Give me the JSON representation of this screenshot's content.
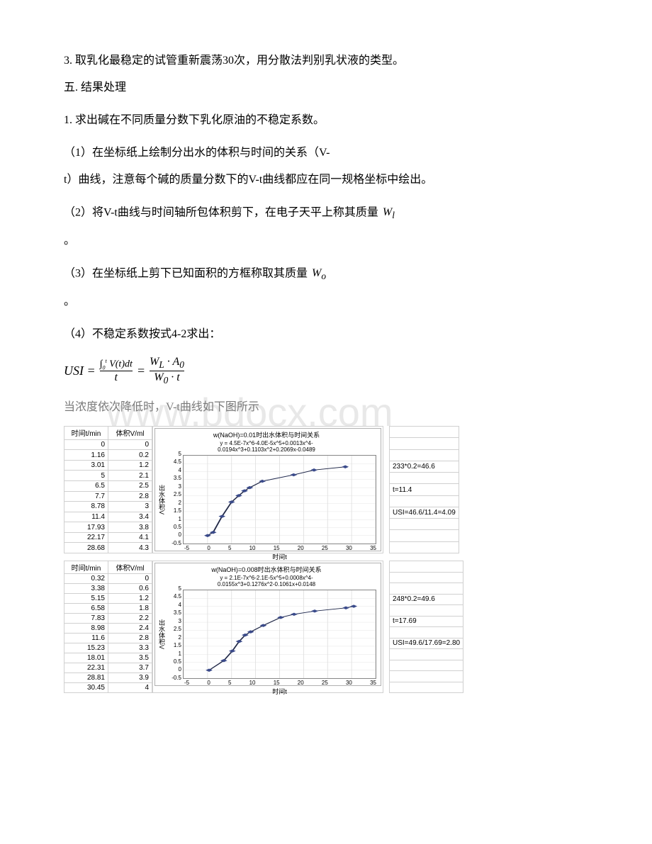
{
  "paragraphs": {
    "p3": "3. 取乳化最稳定的试管重新震荡30次，用分散法判别乳状液的类型。",
    "h5": "五. 结果处理",
    "p1": "1. 求出碱在不同质量分数下乳化原油的不稳定系数。",
    "s1a": "（1）在坐标纸上绘制分出水的体积与时间的关系（V-",
    "s1b": "t）曲线，注意每个碱的质量分数下的V-t曲线都应在同一规格坐标中绘出。",
    "s2": "（2）将V-t曲线与时间轴所包体积剪下，在电子天平上称其质量",
    "s2_period": "。",
    "s3": "（3）在坐标纸上剪下已知面积的方框称取其质量",
    "s3_period": "。",
    "s4": "（4）不稳定系数按式4-2求出：",
    "p_vt": "当浓度依次降低时，V-t曲线如下图所示"
  },
  "formula_labels": {
    "Wi": "W",
    "Wi_sub": "l",
    "Wo": "W",
    "Wo_sub": "o"
  },
  "usi_formula": {
    "lhs": "USI =",
    "num1": "∫₀ᵗ V(t)dt",
    "den1": "t",
    "eq": "=",
    "num2": "W_L · A₀",
    "den2": "W₀ · t"
  },
  "chart1": {
    "table_headers": [
      "时间t/min",
      "体积V/ml"
    ],
    "table_rows": [
      [
        "0",
        "0"
      ],
      [
        "1.16",
        "0.2"
      ],
      [
        "3.01",
        "1.2"
      ],
      [
        "5",
        "2.1"
      ],
      [
        "6.5",
        "2.5"
      ],
      [
        "7.7",
        "2.8"
      ],
      [
        "8.78",
        "3"
      ],
      [
        "11.4",
        "3.4"
      ],
      [
        "17.93",
        "3.8"
      ],
      [
        "22.17",
        "4.1"
      ],
      [
        "28.68",
        "4.3"
      ]
    ],
    "title": "w(NaOH)=0.01时出水体积与时间关系",
    "subtitle": "y = 4.5E-7x^6-4.0E-5x^5+0.0013x^4-\n0.0194x^3+0.1103x^2+0.2069x-0.0489",
    "ylabel": "出水体积V",
    "xlabel": "时间t",
    "ylim": [
      -0.5,
      5
    ],
    "ytick_step": 0.5,
    "xlim": [
      -5,
      35
    ],
    "xtick_step": 5,
    "xticks": [
      "-5",
      "0",
      "5",
      "10",
      "15",
      "20",
      "25",
      "30",
      "35"
    ],
    "yticks": [
      "-0.5",
      "0",
      "0.5",
      "1",
      "1.5",
      "2",
      "2.5",
      "3",
      "3.5",
      "4",
      "4.5",
      "5"
    ],
    "points": [
      [
        0,
        0
      ],
      [
        1.16,
        0.2
      ],
      [
        3.01,
        1.2
      ],
      [
        5,
        2.1
      ],
      [
        6.5,
        2.5
      ],
      [
        7.7,
        2.8
      ],
      [
        8.78,
        3
      ],
      [
        11.4,
        3.4
      ],
      [
        17.93,
        3.8
      ],
      [
        22.17,
        4.1
      ],
      [
        28.68,
        4.3
      ]
    ],
    "marker_color": "#3a4a8a",
    "line_color": "#3a4a8a",
    "fit_color": "#222222",
    "grid_color": "#dddddd",
    "border_color": "#888888",
    "bg_color": "#ffffff",
    "side_notes": [
      "233*0.2=46.6",
      "t=11.4",
      "USI=46.6/11.4=4.09"
    ]
  },
  "chart2": {
    "table_headers": [
      "时间t/min",
      "体积V/ml"
    ],
    "table_rows": [
      [
        "0.32",
        "0"
      ],
      [
        "3.38",
        "0.6"
      ],
      [
        "5.15",
        "1.2"
      ],
      [
        "6.58",
        "1.8"
      ],
      [
        "7.83",
        "2.2"
      ],
      [
        "8.98",
        "2.4"
      ],
      [
        "11.6",
        "2.8"
      ],
      [
        "15.23",
        "3.3"
      ],
      [
        "18.01",
        "3.5"
      ],
      [
        "22.31",
        "3.7"
      ],
      [
        "28.81",
        "3.9"
      ],
      [
        "30.45",
        "4"
      ]
    ],
    "title": "w(NaOH)=0.008时出水体积与时间关系",
    "subtitle": "y = 2.1E-7x^6-2.1E-5x^5+0.0008x^4-\n0.0155x^3+0.1276x^2-0.1061x+0.0148",
    "ylabel": "出水体积V",
    "xlabel": "时间t",
    "ylim": [
      -0.5,
      5
    ],
    "ytick_step": 0.5,
    "xlim": [
      -5,
      35
    ],
    "xtick_step": 5,
    "xticks": [
      "-5",
      "0",
      "5",
      "10",
      "15",
      "20",
      "25",
      "30",
      "35"
    ],
    "yticks": [
      "-0.5",
      "0",
      "0.5",
      "1",
      "1.5",
      "2",
      "2.5",
      "3",
      "3.5",
      "4",
      "4.5",
      "5"
    ],
    "points": [
      [
        0.32,
        0
      ],
      [
        3.38,
        0.6
      ],
      [
        5.15,
        1.2
      ],
      [
        6.58,
        1.8
      ],
      [
        7.83,
        2.2
      ],
      [
        8.98,
        2.4
      ],
      [
        11.6,
        2.8
      ],
      [
        15.23,
        3.3
      ],
      [
        18.01,
        3.5
      ],
      [
        22.31,
        3.7
      ],
      [
        28.81,
        3.9
      ],
      [
        30.45,
        4
      ]
    ],
    "marker_color": "#3a4a8a",
    "line_color": "#3a4a8a",
    "fit_color": "#222222",
    "grid_color": "#dddddd",
    "border_color": "#888888",
    "bg_color": "#ffffff",
    "side_notes": [
      "248*0.2=49.6",
      "t=17.69",
      "USI=49.6/17.69=2.80"
    ]
  }
}
